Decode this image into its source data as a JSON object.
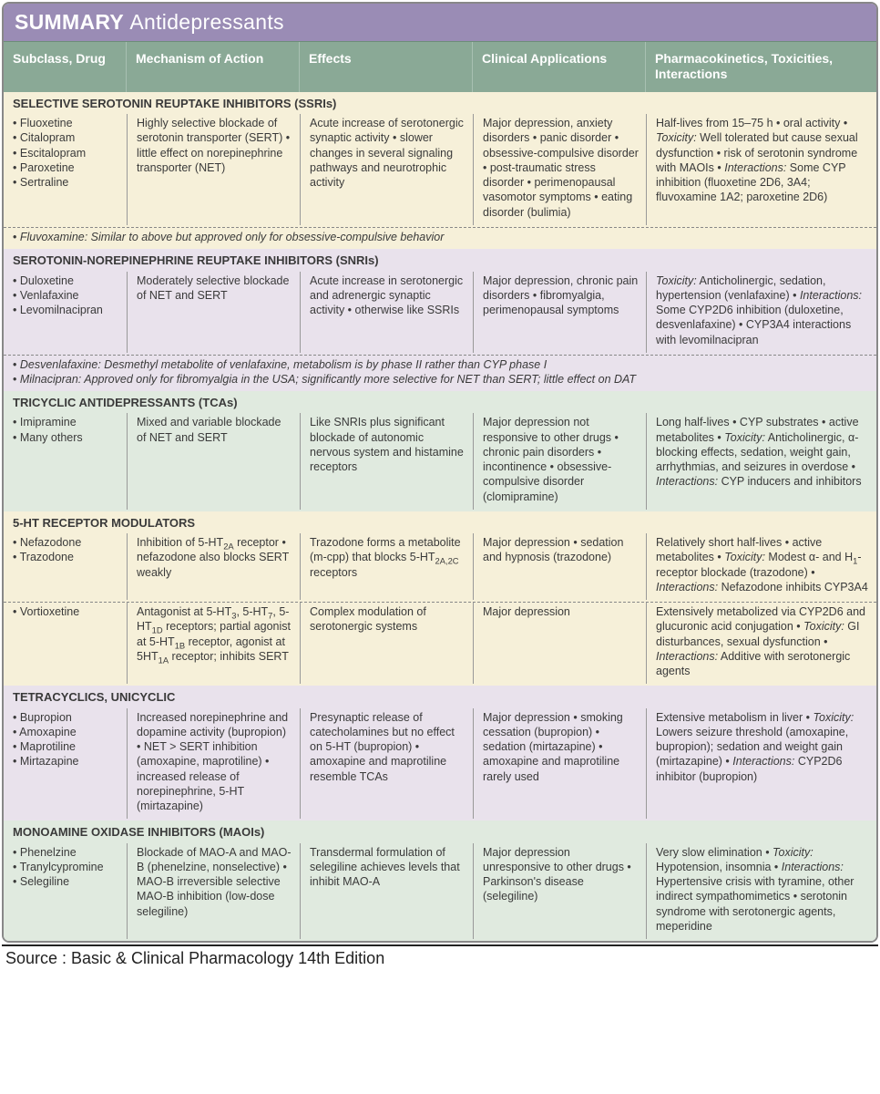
{
  "title_prefix": "SUMMARY",
  "title_main": "Antidepressants",
  "columns": {
    "c1": "Subclass, Drug",
    "c2": "Mechanism of Action",
    "c3": "Effects",
    "c4": "Clinical Applications",
    "c5": "Pharmacokinetics, Toxicities, Interactions"
  },
  "colors": {
    "title_bg": "#9a8cb5",
    "header_bg": "#8aa996",
    "cream": "#f6f0d9",
    "lavender": "#e9e2ec",
    "green": "#e0eadf"
  },
  "sections": [
    {
      "bg": "cream",
      "heading": "SELECTIVE SEROTONIN REUPTAKE INHIBITORS (SSRIs)",
      "rows": [
        {
          "drugs": [
            "Fluoxetine",
            "Citalopram",
            "Escitalopram",
            "Paroxetine",
            "Sertraline"
          ],
          "mech": "Highly selective blockade of serotonin transporter (SERT) • little effect on norepinephrine transporter (NET)",
          "effects": "Acute increase of serotonergic synaptic activity • slower changes in several signaling pathways and neurotrophic activity",
          "clinical": "Major depression, anxiety disorders • panic disorder • obsessive-compulsive disorder • post-traumatic stress disorder • perimenopausal vasomotor symptoms • eating disorder (bulimia)",
          "pk_html": "Half-lives from 15–75 h • oral activity • <i>Toxicity:</i> Well tolerated but cause sexual dysfunction • risk of serotonin syndrome with MAOIs • <i>Interactions:</i> Some CYP inhibition (fluoxetine 2D6, 3A4; fluvoxamine 1A2; paroxetine 2D6)"
        }
      ],
      "notes": [
        "<i>Fluvoxamine:</i> Similar to above but approved only for obsessive-compulsive behavior"
      ]
    },
    {
      "bg": "lavender",
      "heading": "SEROTONIN-NOREPINEPHRINE REUPTAKE INHIBITORS (SNRIs)",
      "rows": [
        {
          "drugs": [
            "Duloxetine",
            "Venlafaxine",
            "Levomilnacipran"
          ],
          "mech": "Moderately selective blockade of NET and SERT",
          "effects": "Acute increase in serotonergic and adrenergic synaptic activity • otherwise like SSRIs",
          "clinical": "Major depression, chronic pain disorders • fibromyalgia, perimenopausal symptoms",
          "pk_html": "<i>Toxicity:</i> Anticholinergic, sedation, hypertension (venlafaxine) • <i>Interactions:</i> Some CYP2D6 inhibition (duloxetine, desvenlafaxine) • CYP3A4 interactions with levomilnacipran"
        }
      ],
      "notes": [
        "<i>Desvenlafaxine:</i> Desmethyl metabolite of venlafaxine, metabolism is by phase II rather than CYP phase I",
        "<i>Milnacipran:</i> Approved only for fibromyalgia in the USA; significantly more selective for NET than SERT; little effect on DAT"
      ]
    },
    {
      "bg": "green",
      "heading": "TRICYCLIC ANTIDEPRESSANTS (TCAs)",
      "rows": [
        {
          "drugs": [
            "Imipramine",
            "Many others"
          ],
          "mech": "Mixed and variable blockade of NET and SERT",
          "effects": "Like SNRIs plus significant blockade of autonomic nervous system and histamine receptors",
          "clinical": "Major depression not responsive to other drugs • chronic pain disorders • incontinence • obsessive-compulsive disorder (clomipramine)",
          "pk_html": "Long half-lives • CYP substrates • active metabolites • <i>Toxicity:</i> Anticholinergic, α-blocking effects, sedation, weight gain, arrhythmias, and seizures in overdose • <i>Interactions:</i> CYP inducers and inhibitors"
        }
      ],
      "notes": []
    },
    {
      "bg": "cream",
      "heading": "5-HT RECEPTOR MODULATORS",
      "rows": [
        {
          "drugs": [
            "Nefazodone",
            "Trazodone"
          ],
          "mech_html": "Inhibition of 5-HT<sub>2A</sub> receptor • nefazodone also blocks SERT weakly",
          "effects_html": "Trazodone forms a metabolite (m-cpp) that blocks 5-HT<sub>2A,2C</sub> receptors",
          "clinical": "Major depression • sedation and hypnosis (trazodone)",
          "pk_html": "Relatively short half-lives • active metabolites • <i>Toxicity:</i> Modest α- and H<sub>1</sub>-receptor blockade (trazodone) • <i>Interactions:</i> Nefazodone inhibits CYP3A4"
        },
        {
          "dashed_above": true,
          "drugs": [
            "Vortioxetine"
          ],
          "mech_html": "Antagonist at 5-HT<sub>3</sub>, 5-HT<sub>7</sub>, 5-HT<sub>1D</sub> receptors; partial agonist at 5-HT<sub>1B</sub> receptor, agonist at 5HT<sub>1A</sub> receptor; inhibits SERT",
          "effects": "Complex modulation of serotonergic systems",
          "clinical": "Major depression",
          "pk_html": "Extensively metabolized via CYP2D6 and glucuronic acid conjugation • <i>Toxicity:</i> GI disturbances, sexual dysfunction • <i>Interactions:</i> Additive with serotonergic agents"
        }
      ],
      "notes": []
    },
    {
      "bg": "lavender",
      "heading": "TETRACYCLICS, UNICYCLIC",
      "rows": [
        {
          "drugs": [
            "Bupropion",
            "Amoxapine",
            "Maprotiline",
            "Mirtazapine"
          ],
          "mech": "Increased norepinephrine and dopamine activity (bupropion) • NET > SERT inhibition (amoxapine, maprotiline) • increased release of norepinephrine, 5-HT (mirtazapine)",
          "effects": "Presynaptic release of catecholamines but no effect on 5-HT (bupropion) • amoxapine and maprotiline resemble TCAs",
          "clinical": "Major depression • smoking cessation (bupropion) • sedation (mirtazapine) • amoxapine and maprotiline rarely used",
          "pk_html": "Extensive metabolism in liver • <i>Toxicity:</i> Lowers seizure threshold (amoxapine, bupropion); sedation and weight gain (mirtazapine) • <i>Interactions:</i> CYP2D6 inhibitor (bupropion)"
        }
      ],
      "notes": []
    },
    {
      "bg": "green",
      "heading": "MONOAMINE OXIDASE INHIBITORS (MAOIs)",
      "rows": [
        {
          "drugs": [
            "Phenelzine",
            "Tranylcypromine",
            "Selegiline"
          ],
          "mech": "Blockade of MAO-A and MAO-B (phenelzine, nonselective) • MAO-B irreversible selective MAO-B inhibition (low-dose selegiline)",
          "effects": "Transdermal formulation of selegiline achieves levels that inhibit MAO-A",
          "clinical": "Major depression unresponsive to other drugs • Parkinson's disease (selegiline)",
          "pk_html": "Very slow elimination • <i>Toxicity:</i> Hypotension, insomnia • <i>Interactions:</i> Hypertensive crisis with tyramine, other indirect sympathomimetics • serotonin syndrome with serotonergic agents, meperidine"
        }
      ],
      "notes": []
    }
  ],
  "source": "Source : Basic & Clinical Pharmacology 14th Edition"
}
